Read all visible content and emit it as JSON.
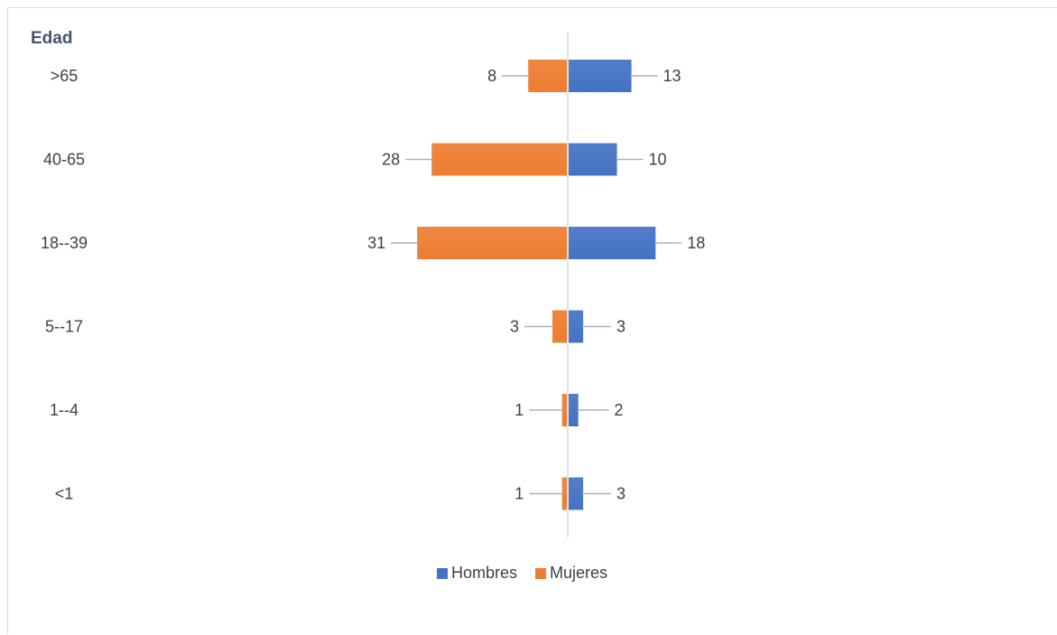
{
  "chart_data": {
    "type": "bar",
    "orientation": "horizontal",
    "layout": "population-pyramid",
    "axis_title": "Edad",
    "categories": [
      ">65",
      "40-65",
      "18--39",
      "5--17",
      "1--4",
      "<1"
    ],
    "series": [
      {
        "name": "Hombres",
        "color": "#4472c4",
        "side": "right",
        "values": [
          13,
          10,
          18,
          3,
          2,
          3
        ]
      },
      {
        "name": "Mujeres",
        "color": "#ed7d31",
        "side": "left",
        "values": [
          8,
          28,
          31,
          3,
          1,
          1
        ]
      }
    ],
    "data_labels": "outside-with-leader-lines",
    "grid": false,
    "legend": "bottom"
  }
}
